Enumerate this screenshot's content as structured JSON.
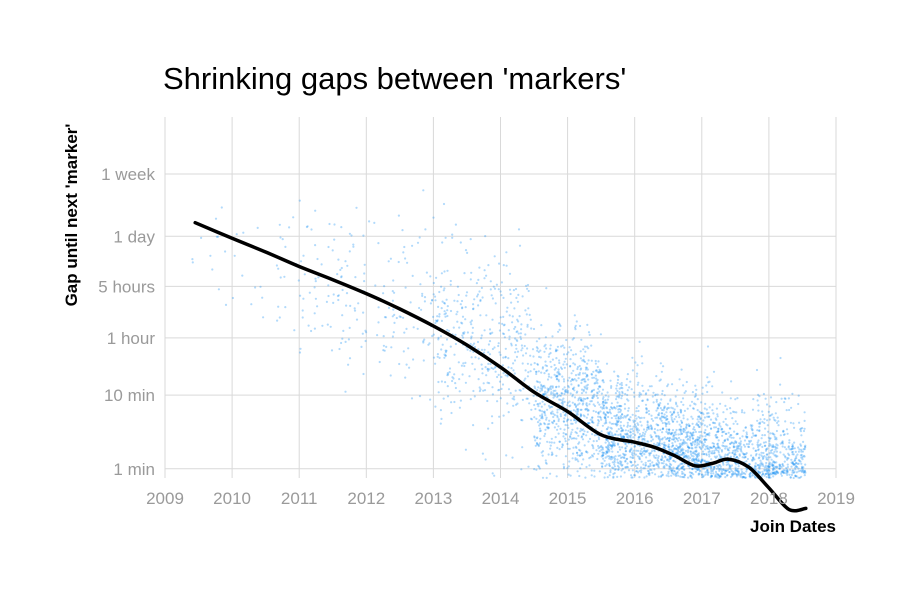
{
  "chart_data": {
    "type": "scatter",
    "title": "Shrinking gaps between 'markers'",
    "xlabel": "Join Dates",
    "ylabel": "Gap until next 'marker'",
    "x_scale": "time",
    "y_scale": "log",
    "xlim": [
      2009,
      2019
    ],
    "x_ticks": [
      "2009",
      "2010",
      "2011",
      "2012",
      "2013",
      "2014",
      "2015",
      "2016",
      "2017",
      "2018",
      "2019"
    ],
    "y_ticks": [
      {
        "label": "1 min",
        "minutes": 1
      },
      {
        "label": "10 min",
        "minutes": 10
      },
      {
        "label": "1 hour",
        "minutes": 60
      },
      {
        "label": "5 hours",
        "minutes": 300
      },
      {
        "label": "1 day",
        "minutes": 1440
      },
      {
        "label": "1 week",
        "minutes": 10080
      }
    ],
    "ylim_minutes": [
      0.75,
      60000
    ],
    "grid": true,
    "point_color": "#2196f3",
    "trend_color": "#000000",
    "series": [
      {
        "name": "",
        "kind": "trend",
        "x": [
          2009.45,
          2010.0,
          2010.5,
          2011.0,
          2011.5,
          2012.0,
          2012.5,
          2013.0,
          2013.5,
          2014.0,
          2014.5,
          2015.0,
          2015.5,
          2016.0,
          2016.3,
          2016.6,
          2016.9,
          2017.15,
          2017.4,
          2017.7,
          2018.0,
          2018.3,
          2018.55
        ],
        "y_minutes": [
          2200,
          1350,
          880,
          560,
          370,
          240,
          148,
          87,
          48,
          24,
          11,
          6,
          2.9,
          2.3,
          1.95,
          1.5,
          1.1,
          1.18,
          1.35,
          1.05,
          0.55,
          0.28,
          0.29
        ]
      }
    ],
    "scatter_density": [
      {
        "from": 2009.4,
        "to": 2011.0,
        "n": 40,
        "center_minutes": 1000,
        "spread_decades": 0.5
      },
      {
        "from": 2011.0,
        "to": 2013.0,
        "n": 180,
        "center_minutes": 300,
        "spread_decades": 0.55
      },
      {
        "from": 2013.0,
        "to": 2014.5,
        "n": 420,
        "center_minutes": 60,
        "spread_decades": 0.6
      },
      {
        "from": 2014.5,
        "to": 2015.5,
        "n": 700,
        "center_minutes": 8,
        "spread_decades": 0.5
      },
      {
        "from": 2015.5,
        "to": 2016.5,
        "n": 900,
        "center_minutes": 2.5,
        "spread_decades": 0.45
      },
      {
        "from": 2016.5,
        "to": 2017.5,
        "n": 1200,
        "center_minutes": 1.4,
        "spread_decades": 0.45
      },
      {
        "from": 2017.5,
        "to": 2018.55,
        "n": 1300,
        "center_minutes": 0.8,
        "spread_decades": 0.45
      }
    ]
  }
}
